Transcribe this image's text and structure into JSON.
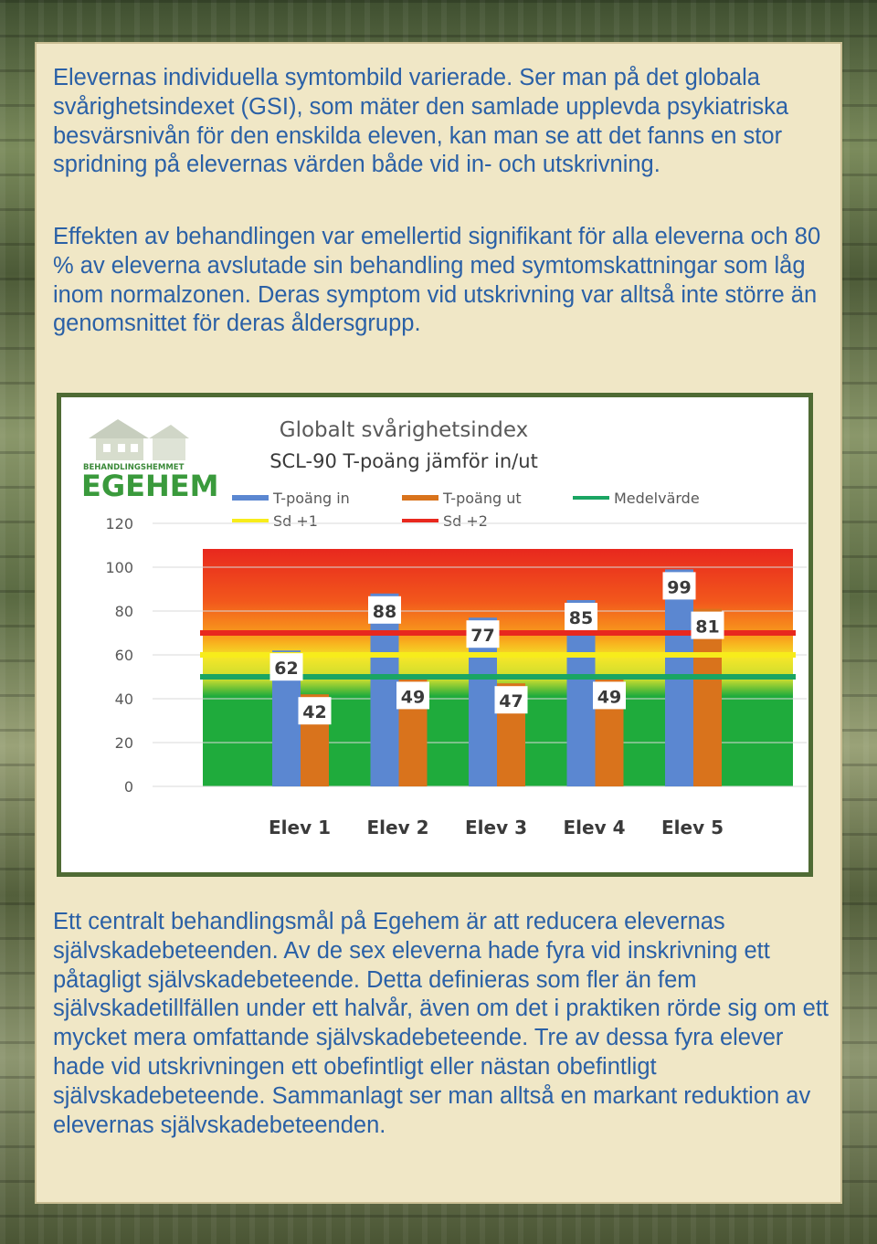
{
  "paragraphs": {
    "p1": "Elevernas individuella symtombild varierade. Ser man på det globala svårighetsindexet (GSI), som mäter den samlade upplevda psykiatriska besvärsnivån för den enskilda eleven, kan man se att det fanns en stor spridning på elevernas värden både vid in- och utskrivning.",
    "p2": "Effekten av behandlingen var emellertid signifikant för alla eleverna och 80 % av eleverna avslutade sin behandling med symtomskattningar som låg inom normalzonen. Deras symptom vid utskrivning var alltså inte större än genomsnittet för deras åldersgrupp.",
    "p3": "Ett centralt behandlingsmål på Egehem är att reducera elevernas självskadebeteenden. Av de sex eleverna hade fyra vid inskrivning ett påtagligt självskadebeteende. Detta definieras som fler än fem självskadetillfällen under ett halvår, även om det i praktiken rörde sig om ett mycket mera omfattande självskadebeteende. Tre av dessa fyra elever hade vid utskrivningen ett obefintligt eller nästan obefintligt självskadebeteende. Sammanlagt ser man alltså en markant reduktion av elevernas självskadebeteenden."
  },
  "logo": {
    "small_text": "BEHANDLINGSHEMMET",
    "name": "EGEHEM"
  },
  "colors": {
    "in": "#5b87d1",
    "out": "#d9731c",
    "mean": "#1aa563",
    "sd1": "#f7ec1b",
    "sd2": "#e8281e",
    "text_blue": "#2a60a6",
    "frame": "#4f6b34"
  },
  "chart_data": {
    "type": "bar",
    "title": "Globalt svårighetsindex",
    "subtitle": "SCL-90 T-poäng jämför in/ut",
    "categories": [
      "Elev 1",
      "Elev 2",
      "Elev 3",
      "Elev 4",
      "Elev 5"
    ],
    "series": [
      {
        "name": "T-poäng in",
        "values": [
          62,
          88,
          77,
          85,
          99
        ]
      },
      {
        "name": "T-poäng ut",
        "values": [
          42,
          49,
          47,
          49,
          81
        ]
      }
    ],
    "reference_lines": [
      {
        "name": "Medelvärde",
        "value": 50
      },
      {
        "name": "Sd +1",
        "value": 60
      },
      {
        "name": "Sd +2",
        "value": 70
      }
    ],
    "legend": [
      "T-poäng in",
      "T-poäng ut",
      "Medelvärde",
      "Sd +1",
      "Sd +2"
    ],
    "yticks": [
      0,
      20,
      40,
      60,
      80,
      100,
      120
    ],
    "ylim": [
      0,
      120
    ],
    "background": "gradient green (low) to red (high)",
    "legend_position": "top"
  }
}
